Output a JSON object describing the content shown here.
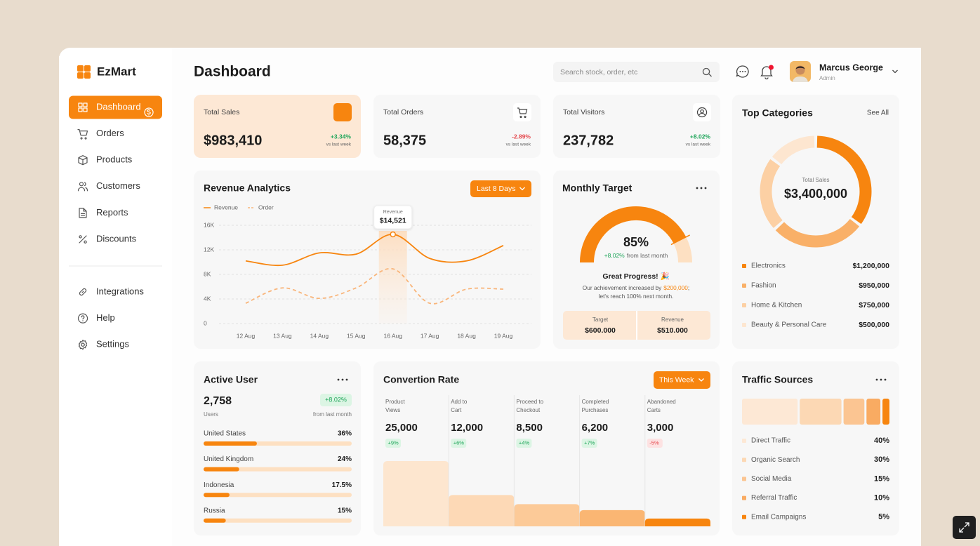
{
  "brand": "EzMart",
  "nav": {
    "main": [
      "Dashboard",
      "Orders",
      "Products",
      "Customers",
      "Reports",
      "Discounts"
    ],
    "secondary": [
      "Integrations",
      "Help",
      "Settings"
    ]
  },
  "header": {
    "title": "Dashboard",
    "search": "Search stock, order, etc",
    "user": {
      "name": "Marcus George",
      "role": "Admin"
    }
  },
  "stats": [
    {
      "label": "Total Sales",
      "value": "$983,410",
      "change": "+3.34%",
      "note": "vs last week"
    },
    {
      "label": "Total Orders",
      "value": "58,375",
      "change": "-2.89%",
      "note": "vs last week"
    },
    {
      "label": "Total Visitors",
      "value": "237,782",
      "change": "+8.02%",
      "note": "vs last week"
    }
  ],
  "revenue": {
    "title": "Revenue Analytics",
    "button": "Last 8 Days",
    "chart_data": {
      "type": "line",
      "categories": [
        "12 Aug",
        "13 Aug",
        "14 Aug",
        "15 Aug",
        "16 Aug",
        "17 Aug",
        "18 Aug",
        "19 Aug"
      ],
      "series": [
        {
          "name": "Revenue",
          "color": "#f7850f",
          "values": [
            10200,
            9500,
            11500,
            11300,
            14521,
            10600,
            10200,
            12700
          ],
          "value_labels": [
            null,
            null,
            null,
            null,
            "$14,521",
            null,
            null,
            null
          ]
        },
        {
          "name": "Order",
          "color": "#f9b57a",
          "dash": true,
          "values": [
            3300,
            5800,
            4100,
            5800,
            8900,
            3300,
            5600,
            5600
          ]
        }
      ],
      "ylim": [
        0,
        16000
      ],
      "yticks": [
        0,
        {
          "value": 4000,
          "label": "4K"
        },
        {
          "value": 8000,
          "label": "8K"
        },
        {
          "value": 12000,
          "label": "12K"
        },
        {
          "value": 16000,
          "label": "16K"
        }
      ],
      "grid": true
    }
  },
  "monthly_target": {
    "title": "Monthly Target",
    "chart_data": {
      "type": "gauge",
      "value": 85,
      "value_label": "85%",
      "lim": [
        0,
        100
      ],
      "color": "#f7850f",
      "track_color": "#fde0c2"
    },
    "change": "+8.02%",
    "change_note": "from last month",
    "headline": "Great Progress! 🎉",
    "desc": [
      "Our achievement increased by",
      "$200,000",
      ";",
      "let's reach 100% next month."
    ],
    "target": {
      "label": "Target",
      "value": "$600.000"
    },
    "revenue": {
      "label": "Revenue",
      "value": "$510.000"
    }
  },
  "top_categories": {
    "title": "Top Categories",
    "link": "See All",
    "center_label": "Total Sales",
    "center_value": "$3,400,000",
    "chart_data": {
      "type": "pie",
      "categories": [
        "Electronics",
        "Fashion",
        "Home & Kitchen",
        "Beauty & Personal Care"
      ],
      "values": [
        1200000,
        950000,
        750000,
        500000
      ],
      "value_labels": [
        "$1,200,000",
        "$950,000",
        "$750,000",
        "$500,000"
      ],
      "colors": [
        "#f7850f",
        "#f9b068",
        "#fcd0a4",
        "#fde6d0"
      ]
    }
  },
  "active_user": {
    "title": "Active User",
    "count": "2,758",
    "count_label": "Users",
    "change": "+8.02%",
    "change_note": "from last month",
    "chart_data": {
      "type": "bar",
      "categories": [
        "United States",
        "United Kingdom",
        "Indonesia",
        "Russia"
      ],
      "values": [
        36,
        24,
        17.5,
        15
      ],
      "value_labels": [
        "36%",
        "24%",
        "17.5%",
        "15%"
      ],
      "xlim": [
        0,
        100
      ],
      "color": "#f7850f",
      "track_color": "#fde0c2"
    }
  },
  "conversion": {
    "title": "Convertion Rate",
    "button": "This Week",
    "chart_data": {
      "type": "bar",
      "categories": [
        "Product Views",
        "Add to Cart",
        "Proceed to Checkout",
        "Completed Purchases",
        "Abandoned Carts"
      ],
      "values": [
        25000,
        12000,
        8500,
        6200,
        3000
      ],
      "value_labels": [
        "25,000",
        "12,000",
        "8,500",
        "6,200",
        "3,000"
      ],
      "changes": [
        "+9%",
        "+6%",
        "+4%",
        "+7%",
        "-5%"
      ],
      "colors": [
        "#fde6cf",
        "#fdd9b6",
        "#fcca98",
        "#fab673",
        "#f7850f"
      ]
    }
  },
  "traffic": {
    "title": "Traffic Sources",
    "chart_data": {
      "type": "bar",
      "stacked": true,
      "categories": [
        "Direct Traffic",
        "Organic Search",
        "Social Media",
        "Referral Traffic",
        "Email Campaigns"
      ],
      "values": [
        40,
        30,
        15,
        10,
        5
      ],
      "value_labels": [
        "40%",
        "30%",
        "15%",
        "10%",
        "5%"
      ],
      "colors": [
        "#fde8d5",
        "#fcd8b4",
        "#fbc592",
        "#f9ab62",
        "#f7850f"
      ]
    }
  }
}
